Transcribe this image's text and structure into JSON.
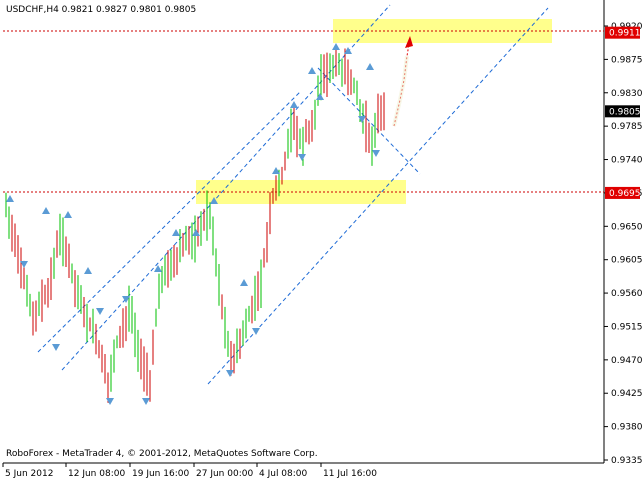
{
  "header": {
    "symbol_line": "USDCHF,H4  0.9821 0.9827 0.9801 0.9805"
  },
  "footer": {
    "copyright": "RoboForex - MetaTrader 4, © 2001-2012, MetaQuotes Software Corp."
  },
  "colors": {
    "up_candle": "#00c000",
    "down_candle": "#cc0000",
    "fractal": "#5b9bd5",
    "channel": "#1e6bd6",
    "level_line": "#cc0000",
    "zone": "#ffff80",
    "arrow": "#e00000"
  },
  "chart_data": {
    "type": "candlestick",
    "y_axis": {
      "range": [
        0.9335,
        0.992
      ],
      "ticks": [
        "0.9920",
        "0.9875",
        "0.9830",
        "0.9785",
        "0.9740",
        "0.9695",
        "0.9650",
        "0.9605",
        "0.9560",
        "0.9515",
        "0.9470",
        "0.9425",
        "0.9380",
        "0.9335"
      ]
    },
    "x_axis": {
      "ticks": [
        "5 Jun 2012",
        "12 Jun 08:00",
        "19 Jun 16:00",
        "27 Jun 00:00",
        "4 Jul 08:00",
        "11 Jul 16:00"
      ]
    },
    "price_labels": [
      {
        "text": "0.9911",
        "value": 0.9911,
        "style": "red"
      },
      {
        "text": "0.9805",
        "value": 0.9805,
        "style": "black"
      },
      {
        "text": "0.9695",
        "value": 0.9695,
        "style": "red"
      }
    ],
    "levels": [
      0.9911,
      0.9695
    ],
    "current_ohlc": {
      "open": 0.9821,
      "high": 0.9827,
      "low": 0.9801,
      "close": 0.9805
    }
  }
}
